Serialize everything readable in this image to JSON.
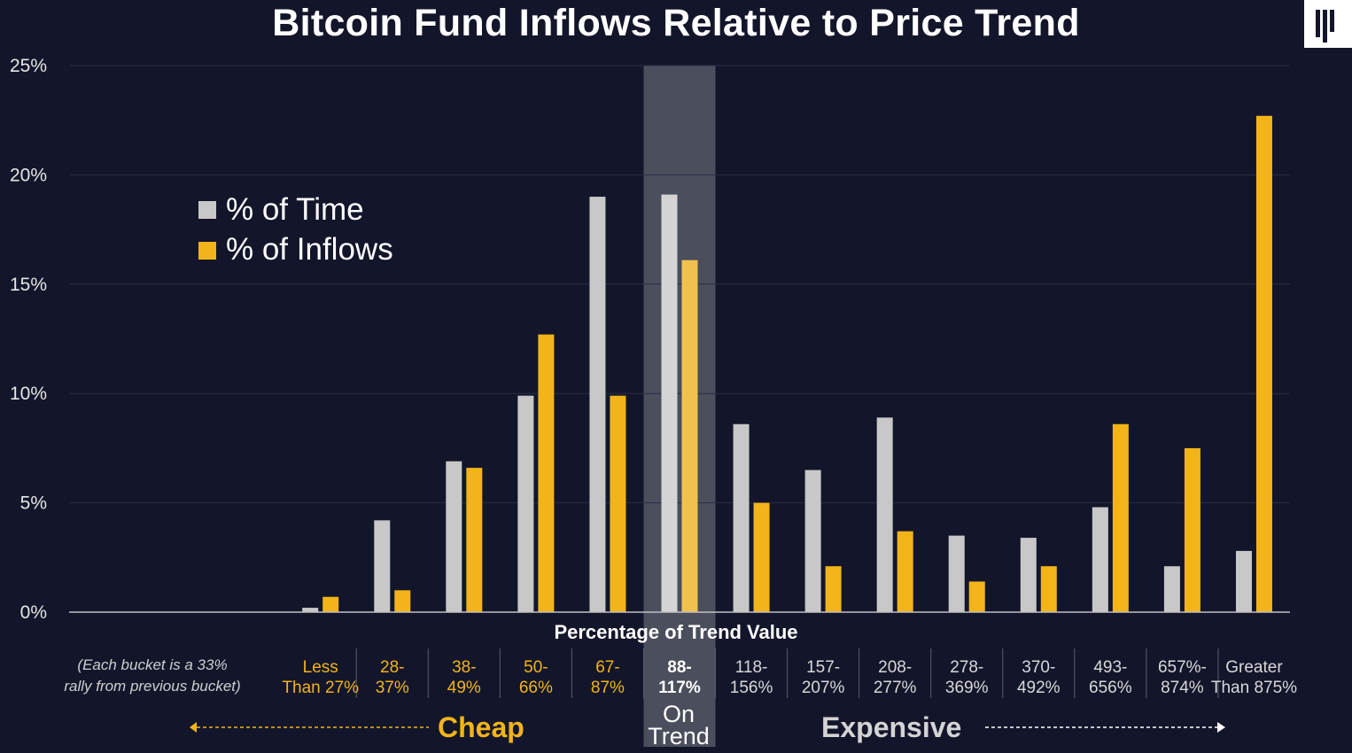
{
  "title": "Bitcoin Fund Inflows Relative to Price Trend",
  "chart_data": {
    "type": "bar",
    "title": "Bitcoin Fund Inflows Relative to Price Trend",
    "xlabel": "Percentage of Trend Value",
    "ylabel": "",
    "ylim": [
      0,
      25
    ],
    "yticks": [
      "0%",
      "5%",
      "10%",
      "15%",
      "20%",
      "25%"
    ],
    "grid": true,
    "legend_position": "upper-left",
    "categories": [
      [
        "",
        ""
      ],
      [
        "",
        ""
      ],
      [
        "",
        ""
      ],
      [
        "Less",
        "Than 27%"
      ],
      [
        "28-",
        "37%"
      ],
      [
        "38-",
        "49%"
      ],
      [
        "50-",
        "66%"
      ],
      [
        "67-",
        "87%"
      ],
      [
        "88-",
        "117%"
      ],
      [
        "118-",
        "156%"
      ],
      [
        "157-",
        "207%"
      ],
      [
        "208-",
        "277%"
      ],
      [
        "278-",
        "369%"
      ],
      [
        "370-",
        "492%"
      ],
      [
        "493-",
        "656%"
      ],
      [
        "657%-",
        "874%"
      ],
      [
        "Greater",
        "Than 875%"
      ]
    ],
    "category_group": [
      "",
      "",
      "",
      "cheap",
      "cheap",
      "cheap",
      "cheap",
      "cheap",
      "neutral",
      "exp",
      "exp",
      "exp",
      "exp",
      "exp",
      "exp",
      "exp",
      "exp"
    ],
    "series": [
      {
        "name": "% of Time",
        "color": "#c8c8c8",
        "values": [
          0,
          0,
          0,
          0.2,
          4.2,
          6.9,
          9.9,
          19.0,
          19.1,
          8.6,
          6.5,
          8.9,
          3.5,
          3.4,
          4.8,
          2.1,
          2.8
        ]
      },
      {
        "name": "% of Inflows",
        "color": "#f2b41a",
        "values": [
          0,
          0,
          0,
          0.7,
          1.0,
          6.6,
          12.7,
          9.9,
          16.1,
          5.0,
          2.1,
          3.7,
          1.4,
          2.1,
          8.6,
          7.5,
          22.7
        ]
      }
    ],
    "highlight_category_index": 8
  },
  "annotations": {
    "bucket_note_line1": "(Each bucket is a 33%",
    "bucket_note_line2": "rally from previous bucket)",
    "cheap_label": "Cheap",
    "on_trend_line1": "On",
    "on_trend_line2": "Trend",
    "expensive_label": "Expensive"
  },
  "colors": {
    "background": "#13162b",
    "time": "#c8c8c8",
    "inflows": "#f2b41a",
    "highlight_band": "#4b4e5d"
  }
}
